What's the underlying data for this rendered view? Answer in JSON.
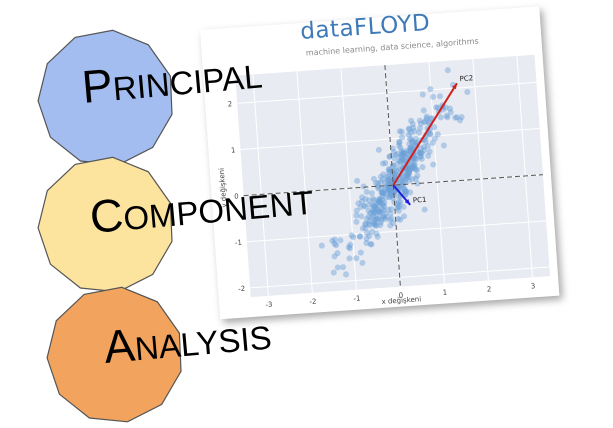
{
  "logo": {
    "brand": "dataFLOYD",
    "tagline": "machine learning, data science, algorithms"
  },
  "words": [
    {
      "first": "P",
      "rest": "RINCIPAL",
      "color": "#a3bdf0"
    },
    {
      "first": "C",
      "rest": "OMPONENT",
      "color": "#fde49e"
    },
    {
      "first": "A",
      "rest": "NALYSIS",
      "color": "#f2a45e"
    }
  ],
  "chart_data": {
    "type": "scatter",
    "xlabel": "x değişkeni",
    "ylabel": "y değişkeni",
    "xlim": [
      -3.4,
      3.4
    ],
    "ylim": [
      -2.2,
      2.6
    ],
    "x_ticks": [
      "-3",
      "-2",
      "-1",
      "0",
      "1",
      "2",
      "3"
    ],
    "y_ticks": [
      "2",
      "1",
      "0",
      "-1",
      "-2"
    ],
    "grid": true,
    "point_color": "#6a9fd6",
    "vectors": [
      {
        "name": "PC1",
        "from": [
          0,
          0
        ],
        "to": [
          0.35,
          -0.45
        ],
        "color": "#1f1fd9"
      },
      {
        "name": "PC2",
        "from": [
          0,
          0
        ],
        "to": [
          1.6,
          2.1
        ],
        "color": "#d11e1e"
      }
    ]
  }
}
